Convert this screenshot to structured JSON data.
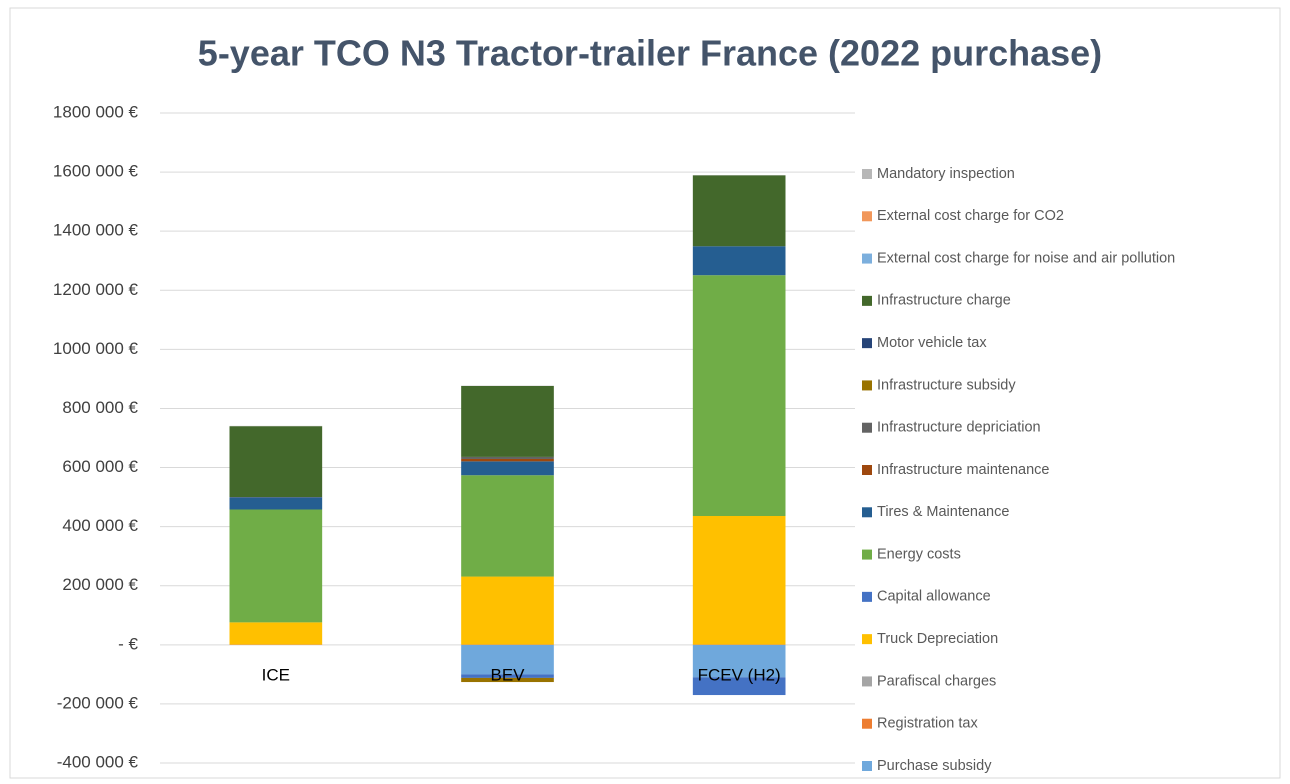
{
  "chart_data": {
    "type": "stacked_bar",
    "title": "5-year TCO N3 Tractor-trailer France (2022 purchase)",
    "categories": [
      "ICE",
      "BEV",
      "FCEV (H2)"
    ],
    "series": [
      {
        "name": "Purchase subsidy",
        "color": "#6fa8dc",
        "values": [
          0,
          -100000,
          -110000
        ]
      },
      {
        "name": "Registration tax",
        "color": "#ed7d31",
        "values": [
          1000,
          1000,
          1000
        ]
      },
      {
        "name": "Parafiscal charges",
        "color": "#a5a5a5",
        "values": [
          0,
          0,
          0
        ]
      },
      {
        "name": "Truck Depreciation",
        "color": "#ffc000",
        "values": [
          75000,
          230000,
          435000
        ]
      },
      {
        "name": "Capital allowance",
        "color": "#4472c4",
        "values": [
          0,
          -12000,
          -60000
        ]
      },
      {
        "name": "Energy costs",
        "color": "#70ad47",
        "values": [
          382000,
          343000,
          815000
        ]
      },
      {
        "name": "Tires & Maintenance",
        "color": "#255e91",
        "values": [
          40000,
          47000,
          98000
        ]
      },
      {
        "name": "Infrastructure maintenance",
        "color": "#9e480e",
        "values": [
          0,
          8000,
          0
        ]
      },
      {
        "name": "Infrastructure depriciation",
        "color": "#636363",
        "values": [
          0,
          7000,
          0
        ]
      },
      {
        "name": "Infrastructure subsidy",
        "color": "#997300",
        "values": [
          0,
          -14000,
          0
        ]
      },
      {
        "name": "Motor vehicle tax",
        "color": "#264478",
        "values": [
          2000,
          0,
          0
        ]
      },
      {
        "name": "Infrastructure charge",
        "color": "#43682b",
        "values": [
          240000,
          240000,
          240000
        ]
      },
      {
        "name": "External cost charge for noise and air pollution",
        "color": "#7cafdd",
        "values": [
          0,
          0,
          0
        ]
      },
      {
        "name": "External cost charge for CO2",
        "color": "#f1975a",
        "values": [
          0,
          0,
          0
        ]
      },
      {
        "name": "Mandatory inspection",
        "color": "#b7b7b7",
        "values": [
          1000,
          1000,
          1000
        ]
      }
    ],
    "ylim": [
      -400000,
      1800000
    ],
    "yticks": [
      {
        "value": -400000,
        "label": "-400 000 €"
      },
      {
        "value": -200000,
        "label": "-200 000 €"
      },
      {
        "value": 0,
        "label": "-   €"
      },
      {
        "value": 200000,
        "label": "200 000 €"
      },
      {
        "value": 400000,
        "label": "400 000 €"
      },
      {
        "value": 600000,
        "label": "600 000 €"
      },
      {
        "value": 800000,
        "label": "800 000 €"
      },
      {
        "value": 1000000,
        "label": "1000 000 €"
      },
      {
        "value": 1200000,
        "label": "1200 000 €"
      },
      {
        "value": 1400000,
        "label": "1400 000 €"
      },
      {
        "value": 1600000,
        "label": "1600 000 €"
      },
      {
        "value": 1800000,
        "label": "1800 000 €"
      }
    ],
    "grid": true,
    "legend": "right"
  }
}
